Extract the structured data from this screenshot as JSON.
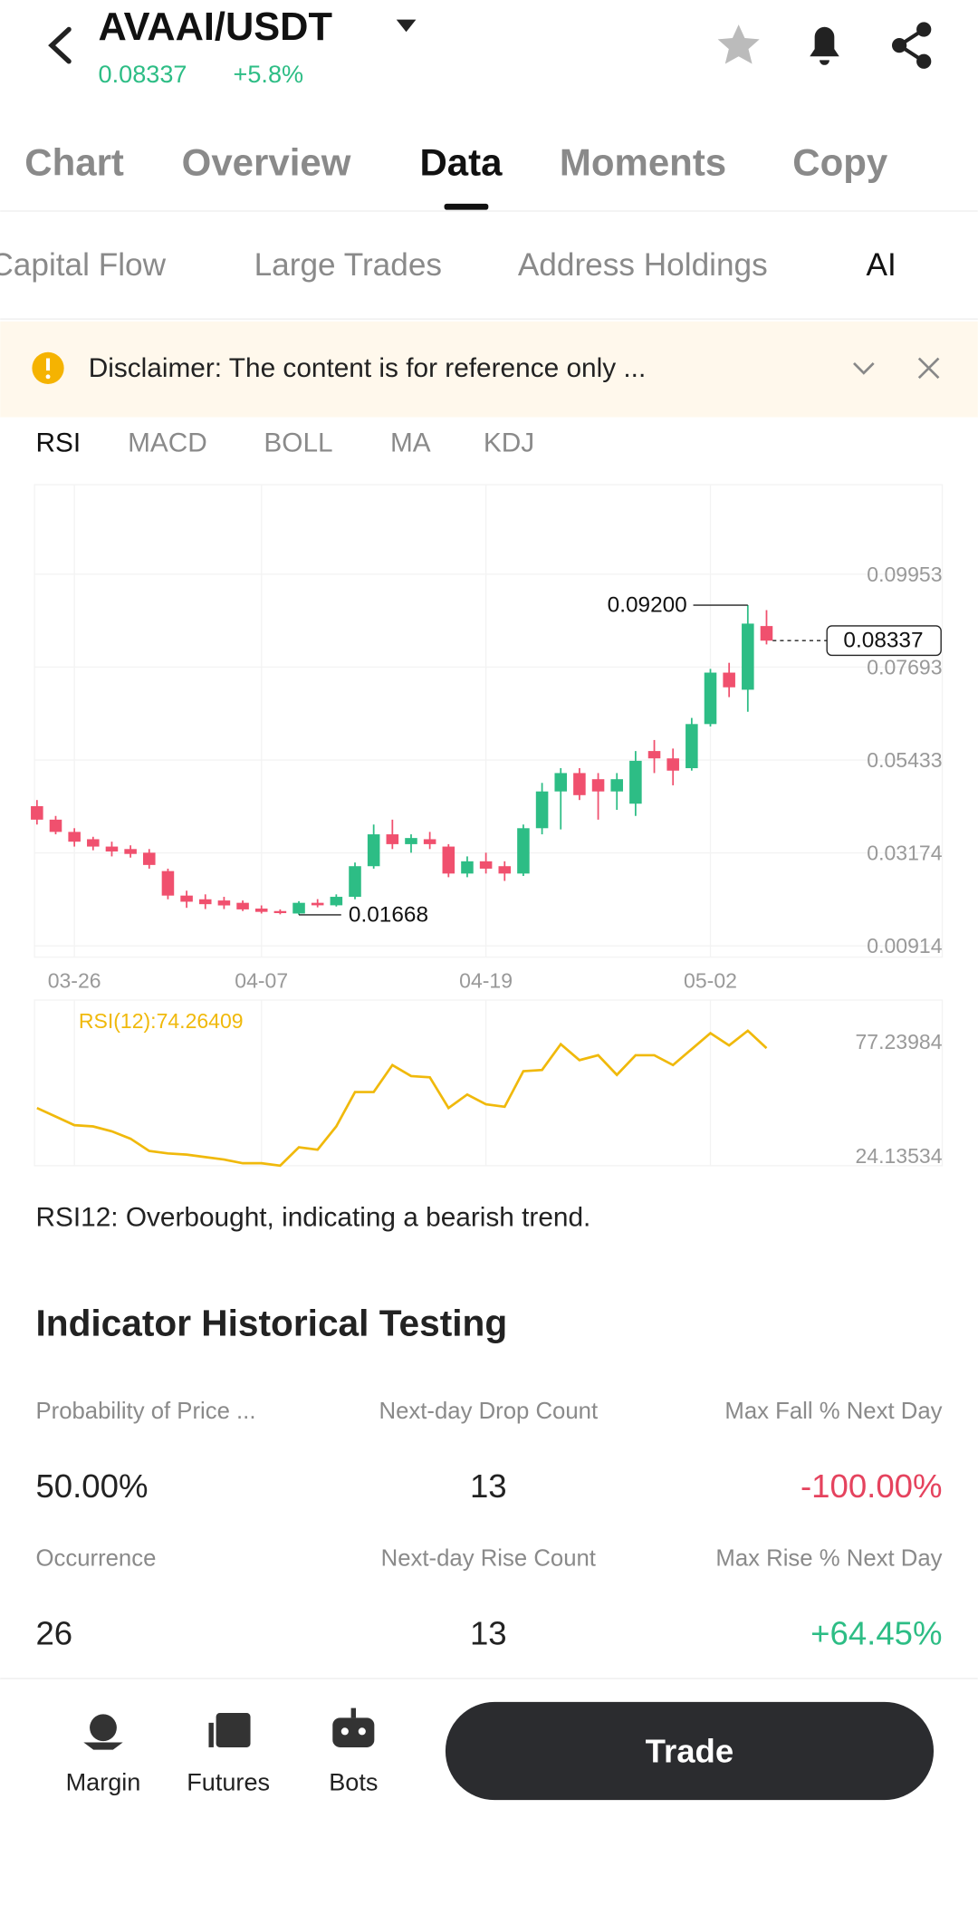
{
  "header": {
    "pair": "AVAAI/USDT",
    "price": "0.08337",
    "change": "+5.8%"
  },
  "tabs": [
    "Chart",
    "Overview",
    "Data",
    "Moments",
    "Copy"
  ],
  "sub_tabs": [
    "Capital Flow",
    "Large Trades",
    "Address Holdings",
    "AI"
  ],
  "disclaimer": "Disclaimer: The content is for reference only ...",
  "indicators": [
    "RSI",
    "MACD",
    "BOLL",
    "MA",
    "KDJ"
  ],
  "chart_data": [
    {
      "type": "candlestick",
      "up_color": "#2dbd85",
      "down_color": "#f0506e",
      "categories": [
        null,
        null,
        "03-26",
        null,
        null,
        null,
        null,
        null,
        null,
        null,
        null,
        null,
        "04-07",
        null,
        null,
        null,
        null,
        null,
        null,
        null,
        null,
        null,
        null,
        null,
        "04-19",
        null,
        null,
        null,
        null,
        null,
        null,
        null,
        null,
        null,
        null,
        null,
        "05-02",
        null,
        null,
        null
      ],
      "open": [
        0.04311,
        0.03983,
        0.03685,
        0.03507,
        0.03328,
        0.03268,
        0.03179,
        0.02732,
        0.02136,
        0.02046,
        0.02017,
        0.0196,
        0.0182,
        0.0176,
        0.017,
        0.0196,
        0.019,
        0.02106,
        0.02851,
        0.03626,
        0.03387,
        0.03507,
        0.03328,
        0.02672,
        0.0297,
        0.02851,
        0.02672,
        0.03775,
        0.04669,
        0.05116,
        0.04967,
        0.04669,
        0.04371,
        0.05652,
        0.05473,
        0.05235,
        0.06308,
        0.07559,
        0.07143,
        0.08692
      ],
      "high": [
        0.0446,
        0.04073,
        0.03775,
        0.03566,
        0.03447,
        0.03358,
        0.03268,
        0.02791,
        0.02255,
        0.02166,
        0.02106,
        0.02017,
        0.01897,
        0.018,
        0.02,
        0.0205,
        0.02166,
        0.0294,
        0.03864,
        0.03983,
        0.03626,
        0.03685,
        0.03387,
        0.03089,
        0.03179,
        0.0297,
        0.03864,
        0.04877,
        0.05235,
        0.05235,
        0.05116,
        0.05116,
        0.05652,
        0.0592,
        0.05712,
        0.06457,
        0.07649,
        0.07798,
        0.092,
        0.09079
      ],
      "low": [
        0.03864,
        0.03626,
        0.03328,
        0.03238,
        0.03089,
        0.0306,
        0.02791,
        0.02046,
        0.01838,
        0.01808,
        0.01808,
        0.0176,
        0.017,
        0.0168,
        0.01668,
        0.0185,
        0.0187,
        0.02046,
        0.02791,
        0.03268,
        0.03179,
        0.03268,
        0.02583,
        0.02583,
        0.02672,
        0.02493,
        0.02613,
        0.03626,
        0.03745,
        0.0446,
        0.03983,
        0.04222,
        0.04073,
        0.05116,
        0.04818,
        0.05175,
        0.06248,
        0.06963,
        0.06606,
        0.08245
      ],
      "close": [
        0.03983,
        0.03685,
        0.03447,
        0.03328,
        0.03209,
        0.03149,
        0.02881,
        0.02136,
        0.01987,
        0.01927,
        0.01897,
        0.018,
        0.0174,
        0.0171,
        0.0196,
        0.019,
        0.02106,
        0.02851,
        0.03626,
        0.03387,
        0.03536,
        0.03387,
        0.02672,
        0.0297,
        0.02791,
        0.02672,
        0.03775,
        0.04669,
        0.05116,
        0.04579,
        0.04669,
        0.04967,
        0.05414,
        0.05473,
        0.05175,
        0.06308,
        0.07559,
        0.07202,
        0.08751,
        0.08337
      ],
      "ylim": [
        0.0064,
        0.1213
      ],
      "yticks": [
        0.00914,
        0.03174,
        0.05433,
        0.07693,
        0.09953
      ],
      "high_label": "0.09200",
      "low_label": "0.01668",
      "last_label": "0.08337",
      "grid": true
    },
    {
      "type": "line",
      "series": [
        {
          "name": "RSI(12):74.26409",
          "color": "#f0b90b",
          "values": [
            46.41,
            42.41,
            38.41,
            37.84,
            35.56,
            32.13,
            26.42,
            25.28,
            24.71,
            23.57,
            22.42,
            20.71,
            20.71,
            19.57,
            28.13,
            27.0,
            37.84,
            53.83,
            53.83,
            66.39,
            61.25,
            60.68,
            46.41,
            52.69,
            48.12,
            46.98,
            63.54,
            64.1,
            76.1,
            68.67,
            70.96,
            61.82,
            70.96,
            70.96,
            66.39,
            73.81,
            81.24,
            75.53,
            82.38,
            74.26409
          ]
        }
      ],
      "ylim": [
        16.71,
        96.65
      ],
      "yticks": [
        24.13534,
        77.23984
      ]
    }
  ],
  "summary": "RSI12: Overbought, indicating a bearish trend.",
  "testing": {
    "title": "Indicator Historical Testing",
    "rows": [
      [
        {
          "label": "Probability of Price ...",
          "value": "50.00%"
        },
        {
          "label": "Next-day Drop Count",
          "value": "13"
        },
        {
          "label": "Max Fall % Next Day",
          "value": "-100.00%"
        }
      ],
      [
        {
          "label": "Occurrence",
          "value": "26"
        },
        {
          "label": "Next-day Rise Count",
          "value": "13"
        },
        {
          "label": "Max Rise % Next Day",
          "value": "+64.45%"
        }
      ]
    ]
  },
  "nav": [
    "Margin",
    "Futures",
    "Bots"
  ],
  "trade": "Trade"
}
